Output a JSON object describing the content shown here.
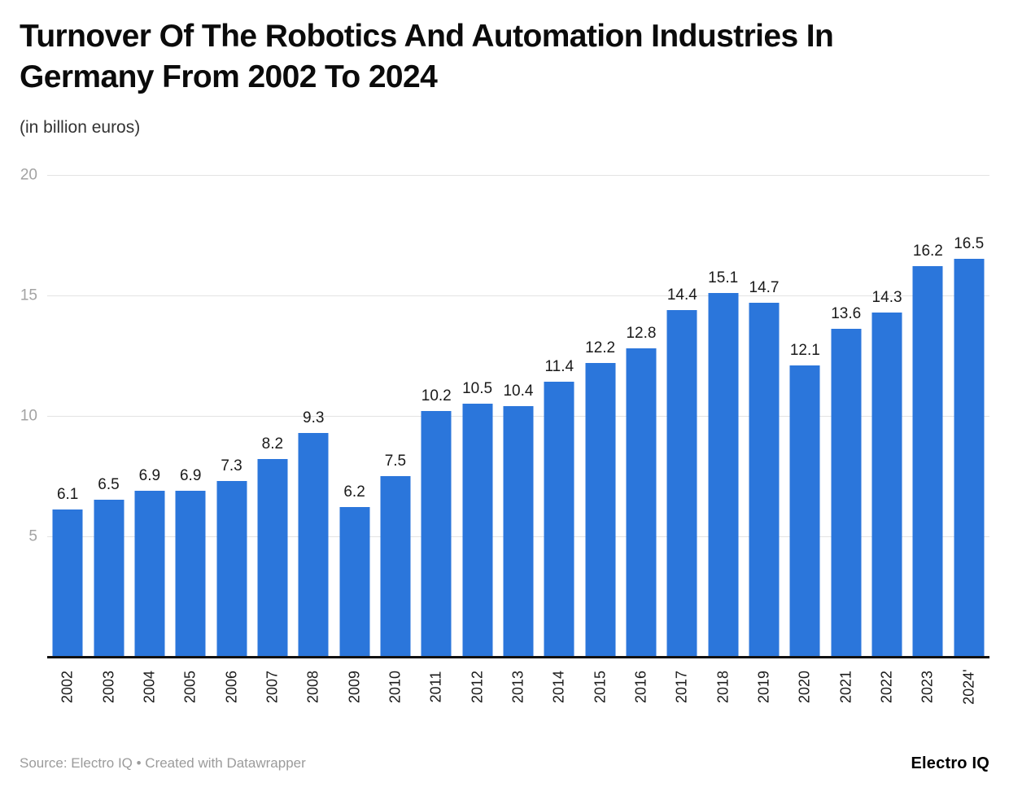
{
  "header": {
    "title_line1": "Turnover Of The Robotics And Automation Industries In",
    "title_line2": "Germany From 2002 To 2024",
    "subtitle": "(in billion euros)"
  },
  "chart_data": {
    "type": "bar",
    "title": "Turnover Of The Robotics And Automation Industries In Germany From 2002 To 2024",
    "subtitle": "(in billion euros)",
    "categories": [
      "2002",
      "2003",
      "2004",
      "2005",
      "2006",
      "2007",
      "2008",
      "2009",
      "2010",
      "2011",
      "2012",
      "2013",
      "2014",
      "2015",
      "2016",
      "2017",
      "2018",
      "2019",
      "2020",
      "2021",
      "2022",
      "2023",
      "2024'"
    ],
    "values": [
      6.1,
      6.5,
      6.9,
      6.9,
      7.3,
      8.2,
      9.3,
      6.2,
      7.5,
      10.2,
      10.5,
      10.4,
      11.4,
      12.2,
      12.8,
      14.4,
      15.1,
      14.7,
      12.1,
      13.6,
      14.3,
      16.2,
      16.5
    ],
    "xlabel": "",
    "ylabel": "",
    "ylim": [
      0,
      20
    ],
    "yticks": [
      20,
      15,
      10,
      5
    ],
    "grid": true,
    "legend": "none",
    "value_labels": true,
    "bar_color": "#2b76db"
  },
  "colors": {
    "bar": "#2b76db",
    "gridline": "#e3e3e3",
    "axis_line": "#111111",
    "y_tick_text": "#a3a3a3",
    "value_label_text": "#1a1a1a",
    "source_text": "#9b9b9b"
  },
  "footer": {
    "source": "Source: Electro IQ • Created with Datawrapper",
    "brand": "Electro IQ"
  }
}
